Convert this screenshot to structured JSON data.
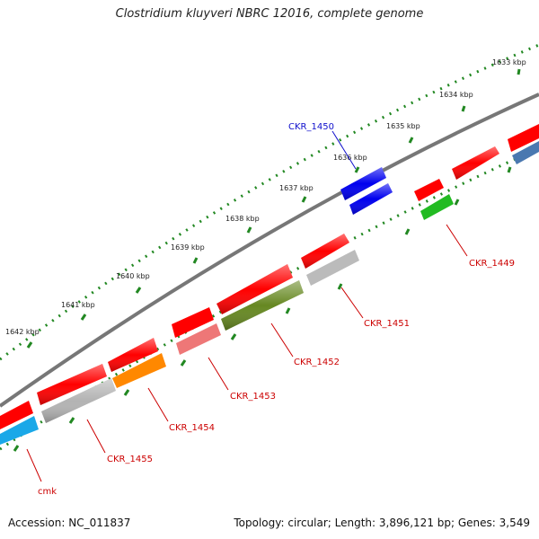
{
  "title": "Clostridium kluyveri NBRC 12016, complete genome",
  "footer": {
    "accession": "Accession: NC_011837",
    "summary": "Topology: circular; Length: 3,896,121 bp; Genes: 3,549"
  },
  "kbp_ticks": [
    {
      "label": "1633 kbp"
    },
    {
      "label": "1634 kbp"
    },
    {
      "label": "1635 kbp"
    },
    {
      "label": "1636 kbp"
    },
    {
      "label": "1637 kbp"
    },
    {
      "label": "1638 kbp"
    },
    {
      "label": "1639 kbp"
    },
    {
      "label": "1640 kbp"
    },
    {
      "label": "1641 kbp"
    },
    {
      "label": "1642 kbp"
    }
  ],
  "gene_labels": [
    {
      "name": "CKR_1450",
      "color": "#1010cc"
    },
    {
      "name": "CKR_1449",
      "color": "#cc0000"
    },
    {
      "name": "CKR_1451",
      "color": "#cc0000"
    },
    {
      "name": "CKR_1452",
      "color": "#cc0000"
    },
    {
      "name": "CKR_1453",
      "color": "#cc0000"
    },
    {
      "name": "CKR_1454",
      "color": "#cc0000"
    },
    {
      "name": "CKR_1455",
      "color": "#cc0000"
    },
    {
      "name": "cmk",
      "color": "#cc0000"
    }
  ],
  "colors": {
    "forward_gene": "#ff0000",
    "backbone": "#777777",
    "tick": "#228822",
    "CKR_1450": "#0000ee",
    "CKR_1449": "#22bb22",
    "CKR_1451": "#bbbbbb",
    "CKR_1452": "#668822",
    "CKR_1453": "#ee7777",
    "CKR_1454": "#ff8800",
    "CKR_1455": "#b3b3b3",
    "cmk": "#1aa8e8",
    "edge_gene": "#4a78b0"
  }
}
